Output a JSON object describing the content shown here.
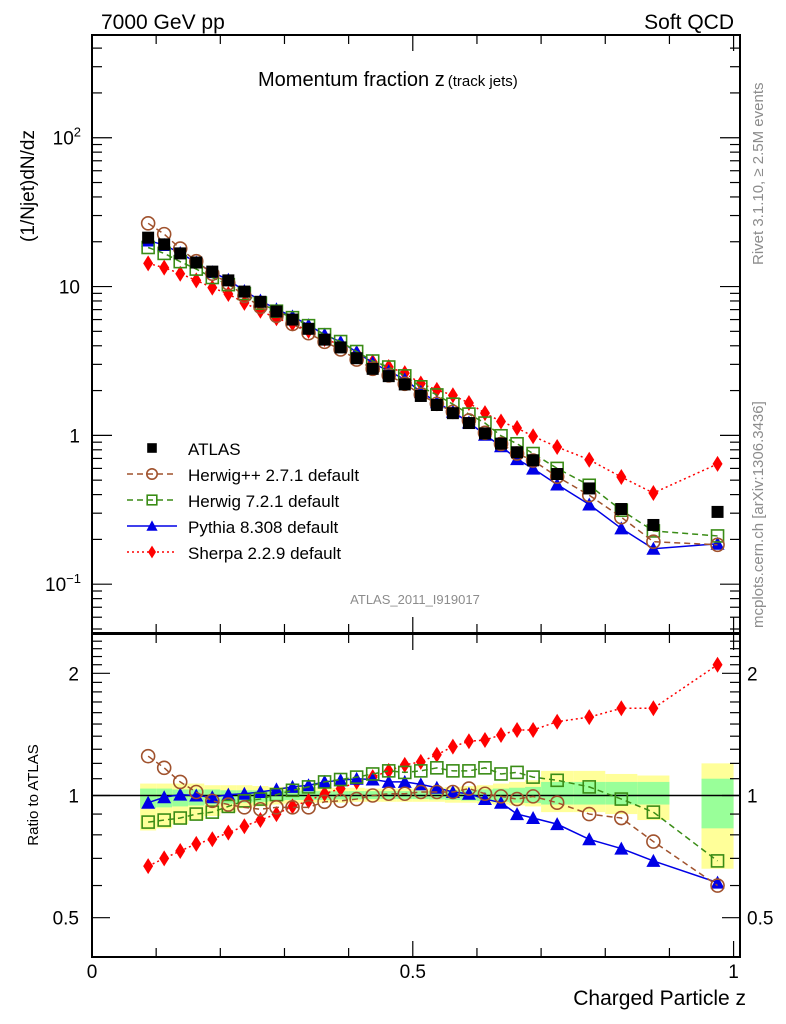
{
  "header": {
    "left": "7000 GeV pp",
    "right": "Soft QCD"
  },
  "side_labels": {
    "rivet": "Rivet 3.1.10, ≥ 2.5M events",
    "mcplots": "mcplots.cern.ch [arXiv:1306.3436]"
  },
  "chart_data": [
    {
      "type": "scatter",
      "panel": "main",
      "title": "Momentum fraction z",
      "title_suffix": "(track jets)",
      "xlabel": "",
      "ylabel": "(1/Njet)dN/dz",
      "yscale": "log",
      "xlim": [
        0,
        1.01
      ],
      "ylim": [
        0.047,
        490
      ],
      "ytick_labels": [
        {
          "value": 100,
          "base": "10",
          "exp": "2"
        },
        {
          "value": 10,
          "base": "10",
          "exp": ""
        },
        {
          "value": 1,
          "base": "1",
          "exp": ""
        },
        {
          "value": 0.1,
          "base": "10",
          "exp": "−1"
        }
      ],
      "analysis_label": "ATLAS_2011_I919017",
      "legend_position": "center-left",
      "x": [
        0.0875,
        0.1125,
        0.1375,
        0.1625,
        0.1875,
        0.2125,
        0.2375,
        0.2625,
        0.2875,
        0.3125,
        0.3375,
        0.3625,
        0.3875,
        0.4125,
        0.4375,
        0.4625,
        0.4875,
        0.5125,
        0.5375,
        0.5625,
        0.5875,
        0.6125,
        0.6375,
        0.6625,
        0.6875,
        0.725,
        0.775,
        0.825,
        0.875,
        0.975
      ],
      "series": [
        {
          "name": "ATLAS",
          "color": "#000000",
          "marker": "square",
          "line": "none",
          "values": [
            21.3,
            19.2,
            16.7,
            14.5,
            12.6,
            11.0,
            9.25,
            7.9,
            6.8,
            6.0,
            5.2,
            4.4,
            3.9,
            3.3,
            2.8,
            2.5,
            2.2,
            1.84,
            1.6,
            1.41,
            1.21,
            1.03,
            0.88,
            0.77,
            0.68,
            0.55,
            0.44,
            0.32,
            0.25,
            0.306
          ]
        },
        {
          "name": "Herwig++ 2.7.1 default",
          "color": "#a0522d",
          "marker": "open-circle",
          "line": "dashed",
          "values": [
            26.6,
            22.5,
            18.0,
            14.8,
            12.2,
            10.5,
            8.65,
            7.31,
            6.36,
            5.61,
            4.86,
            4.25,
            3.78,
            3.23,
            2.8,
            2.53,
            2.22,
            1.88,
            1.63,
            1.44,
            1.26,
            1.04,
            0.876,
            0.755,
            0.677,
            0.528,
            0.396,
            0.282,
            0.193,
            0.184
          ]
        },
        {
          "name": "Herwig 7.2.1 default",
          "color": "#3a8c16",
          "marker": "open-square",
          "line": "dashed",
          "values": [
            18.3,
            16.7,
            14.7,
            13.1,
            11.5,
            10.3,
            8.97,
            7.74,
            6.83,
            6.18,
            5.46,
            4.75,
            4.27,
            3.66,
            3.16,
            2.88,
            2.51,
            2.12,
            1.87,
            1.62,
            1.39,
            1.21,
            0.994,
            0.878,
            0.755,
            0.6,
            0.462,
            0.314,
            0.228,
            0.211
          ]
        },
        {
          "name": "Pythia 8.308 default",
          "color": "#0000e6",
          "marker": "triangle",
          "line": "solid",
          "values": [
            20.4,
            19.0,
            16.8,
            14.5,
            12.5,
            11.1,
            9.34,
            8.06,
            7.04,
            6.3,
            5.51,
            4.75,
            4.25,
            3.63,
            3.07,
            2.7,
            2.38,
            1.96,
            1.67,
            1.44,
            1.22,
            1.01,
            0.845,
            0.693,
            0.598,
            0.468,
            0.343,
            0.237,
            0.173,
            0.187
          ]
        },
        {
          "name": "Sherpa 2.2.9 default",
          "color": "#ff0000",
          "marker": "diamond",
          "line": "dotted",
          "values": [
            14.3,
            13.4,
            12.2,
            11.0,
            9.83,
            8.91,
            7.77,
            6.87,
            6.12,
            5.64,
            5.04,
            4.44,
            4.06,
            3.56,
            3.11,
            2.88,
            2.62,
            2.23,
            2.02,
            1.86,
            1.65,
            1.41,
            1.24,
            1.12,
            0.986,
            0.836,
            0.686,
            0.525,
            0.41,
            0.643
          ]
        }
      ]
    },
    {
      "type": "scatter",
      "panel": "ratio",
      "xlabel": "Charged Particle z",
      "ylabel": "Ratio to ATLAS",
      "yscale": "log",
      "xlim": [
        0,
        1.01
      ],
      "ylim": [
        0.4,
        2.5
      ],
      "xticks": [
        0,
        0.5,
        1
      ],
      "xtick_labels": [
        "0",
        "0.5",
        "1"
      ],
      "yticks": [
        0.5,
        1,
        2
      ],
      "ytick_labels": [
        "0.5",
        "1",
        "2"
      ],
      "reference_line": 1,
      "x": [
        0.0875,
        0.1125,
        0.1375,
        0.1625,
        0.1875,
        0.2125,
        0.2375,
        0.2625,
        0.2875,
        0.3125,
        0.3375,
        0.3625,
        0.3875,
        0.4125,
        0.4375,
        0.4625,
        0.4875,
        0.5125,
        0.5375,
        0.5625,
        0.5875,
        0.6125,
        0.6375,
        0.6625,
        0.6875,
        0.725,
        0.775,
        0.825,
        0.875,
        0.975
      ],
      "bins": [
        [
          0.075,
          0.1
        ],
        [
          0.1,
          0.125
        ],
        [
          0.125,
          0.15
        ],
        [
          0.15,
          0.175
        ],
        [
          0.175,
          0.2
        ],
        [
          0.2,
          0.225
        ],
        [
          0.225,
          0.25
        ],
        [
          0.25,
          0.275
        ],
        [
          0.275,
          0.3
        ],
        [
          0.3,
          0.325
        ],
        [
          0.325,
          0.35
        ],
        [
          0.35,
          0.375
        ],
        [
          0.375,
          0.4
        ],
        [
          0.4,
          0.425
        ],
        [
          0.425,
          0.45
        ],
        [
          0.45,
          0.475
        ],
        [
          0.475,
          0.5
        ],
        [
          0.5,
          0.525
        ],
        [
          0.525,
          0.55
        ],
        [
          0.55,
          0.575
        ],
        [
          0.575,
          0.6
        ],
        [
          0.6,
          0.625
        ],
        [
          0.625,
          0.65
        ],
        [
          0.65,
          0.675
        ],
        [
          0.675,
          0.7
        ],
        [
          0.7,
          0.75
        ],
        [
          0.75,
          0.8
        ],
        [
          0.8,
          0.85
        ],
        [
          0.85,
          0.9
        ],
        [
          0.95,
          1.0
        ]
      ],
      "band_outer": {
        "color": "#ffff99",
        "lo": [
          0.82,
          0.83,
          0.85,
          0.87,
          0.89,
          0.91,
          0.93,
          0.94,
          0.95,
          0.955,
          0.96,
          0.96,
          0.96,
          0.965,
          0.965,
          0.965,
          0.965,
          0.965,
          0.965,
          0.96,
          0.96,
          0.955,
          0.95,
          0.945,
          0.94,
          0.91,
          0.91,
          0.9,
          0.87,
          0.66
        ],
        "hi": [
          1.07,
          1.07,
          1.07,
          1.07,
          1.06,
          1.06,
          1.06,
          1.055,
          1.05,
          1.05,
          1.05,
          1.045,
          1.045,
          1.045,
          1.04,
          1.04,
          1.04,
          1.04,
          1.045,
          1.05,
          1.055,
          1.06,
          1.07,
          1.08,
          1.09,
          1.15,
          1.15,
          1.13,
          1.12,
          1.2
        ]
      },
      "band_inner": {
        "color": "#99ff99",
        "lo": [
          0.93,
          0.935,
          0.94,
          0.945,
          0.95,
          0.955,
          0.96,
          0.965,
          0.97,
          0.975,
          0.975,
          0.975,
          0.978,
          0.978,
          0.98,
          0.98,
          0.98,
          0.98,
          0.978,
          0.975,
          0.972,
          0.97,
          0.965,
          0.96,
          0.958,
          0.95,
          0.95,
          0.95,
          0.95,
          0.83
        ],
        "hi": [
          1.04,
          1.04,
          1.035,
          1.035,
          1.035,
          1.03,
          1.03,
          1.03,
          1.03,
          1.03,
          1.025,
          1.025,
          1.025,
          1.025,
          1.025,
          1.025,
          1.025,
          1.025,
          1.025,
          1.03,
          1.03,
          1.035,
          1.04,
          1.045,
          1.05,
          1.08,
          1.08,
          1.08,
          1.08,
          1.1
        ]
      },
      "series": [
        {
          "name": "Herwig++ 2.7.1 default",
          "color": "#a0522d",
          "marker": "open-circle",
          "line": "dashed",
          "values": [
            1.25,
            1.17,
            1.08,
            1.02,
            0.97,
            0.95,
            0.935,
            0.925,
            0.935,
            0.935,
            0.935,
            0.965,
            0.97,
            0.98,
            1.0,
            1.01,
            1.01,
            1.02,
            1.02,
            1.02,
            1.04,
            1.01,
            0.995,
            0.98,
            0.995,
            0.96,
            0.9,
            0.88,
            0.77,
            0.6
          ]
        },
        {
          "name": "Herwig 7.2.1 default",
          "color": "#3a8c16",
          "marker": "open-square",
          "line": "dashed",
          "values": [
            0.86,
            0.87,
            0.88,
            0.9,
            0.91,
            0.94,
            0.97,
            0.98,
            1.005,
            1.03,
            1.05,
            1.08,
            1.095,
            1.11,
            1.13,
            1.15,
            1.14,
            1.15,
            1.17,
            1.15,
            1.15,
            1.17,
            1.13,
            1.14,
            1.11,
            1.09,
            1.05,
            0.98,
            0.91,
            0.69
          ]
        },
        {
          "name": "Pythia 8.308 default",
          "color": "#0000e6",
          "marker": "triangle",
          "line": "solid",
          "values": [
            0.96,
            0.99,
            1.005,
            1.0,
            0.99,
            1.005,
            1.01,
            1.02,
            1.035,
            1.05,
            1.06,
            1.08,
            1.09,
            1.1,
            1.095,
            1.08,
            1.08,
            1.065,
            1.045,
            1.02,
            1.01,
            0.98,
            0.96,
            0.9,
            0.88,
            0.85,
            0.78,
            0.74,
            0.69,
            0.61
          ]
        },
        {
          "name": "Sherpa 2.2.9 default",
          "color": "#ff0000",
          "marker": "diamond",
          "line": "dotted",
          "values": [
            0.67,
            0.7,
            0.73,
            0.76,
            0.78,
            0.81,
            0.84,
            0.87,
            0.9,
            0.94,
            0.97,
            1.01,
            1.04,
            1.08,
            1.11,
            1.15,
            1.19,
            1.21,
            1.26,
            1.32,
            1.36,
            1.37,
            1.41,
            1.45,
            1.45,
            1.52,
            1.56,
            1.64,
            1.64,
            2.1
          ]
        }
      ]
    }
  ]
}
